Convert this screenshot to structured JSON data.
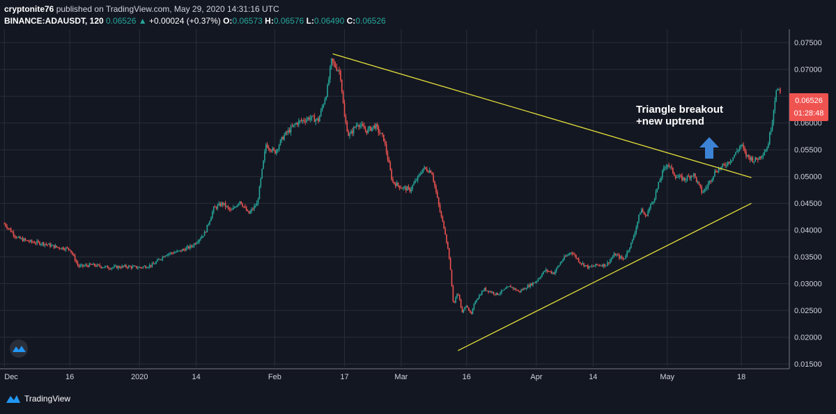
{
  "header": {
    "author": "cryptonite76",
    "published_text": "published on TradingView.com, May 29, 2020 14:31:16 UTC",
    "symbol": "BINANCE:ADAUSDT, 120",
    "last": "0.06526",
    "change": "+0.00024 (+0.37%)",
    "o_label": "O:",
    "o_value": "0.06573",
    "h_label": "H:",
    "h_value": "0.06576",
    "l_label": "L:",
    "l_value": "0.06490",
    "c_label": "C:",
    "c_value": "0.06526"
  },
  "footer": {
    "brand": "TradingView"
  },
  "price_tag": {
    "price": "0.06526",
    "countdown": "01:28:48"
  },
  "annotation": {
    "line1": "Triangle breakout",
    "line2": "+new uptrend"
  },
  "colors": {
    "background": "#131722",
    "grid": "#2a2e39",
    "up": "#26a69a",
    "down": "#ef5350",
    "trendline": "#e6e13a",
    "arrow": "#3c83d6",
    "tag": "#ef5350"
  },
  "chart_data": {
    "type": "candlestick",
    "symbol": "ADAUSDT",
    "ylim": [
      0.0145,
      0.0775
    ],
    "y_ticks": [
      0.015,
      0.02,
      0.025,
      0.03,
      0.035,
      0.04,
      0.045,
      0.05,
      0.055,
      0.06,
      0.065,
      0.07,
      0.075
    ],
    "y_tick_labels": [
      "0.01500",
      "0.02000",
      "0.02500",
      "0.03000",
      "0.03500",
      "0.04000",
      "0.04500",
      "0.05000",
      "0.05500",
      "0.06000",
      "0.06500",
      "0.07000",
      "0.07500"
    ],
    "x_ticks": [
      {
        "label": "Dec",
        "day": 0
      },
      {
        "label": "16",
        "day": 15
      },
      {
        "label": "2020",
        "day": 31
      },
      {
        "label": "14",
        "day": 44
      },
      {
        "label": "Feb",
        "day": 62
      },
      {
        "label": "17",
        "day": 78
      },
      {
        "label": "Mar",
        "day": 91
      },
      {
        "label": "16",
        "day": 106
      },
      {
        "label": "Apr",
        "day": 122
      },
      {
        "label": "14",
        "day": 135
      },
      {
        "label": "May",
        "day": 152
      },
      {
        "label": "18",
        "day": 169
      }
    ],
    "day_range": [
      -1,
      180
    ],
    "price_path": [
      [
        0,
        0.0412
      ],
      [
        3,
        0.0385
      ],
      [
        6,
        0.0378
      ],
      [
        9,
        0.0375
      ],
      [
        12,
        0.0368
      ],
      [
        15,
        0.0365
      ],
      [
        17,
        0.0332
      ],
      [
        20,
        0.0335
      ],
      [
        24,
        0.033
      ],
      [
        28,
        0.0332
      ],
      [
        31,
        0.033
      ],
      [
        34,
        0.0335
      ],
      [
        37,
        0.0355
      ],
      [
        40,
        0.036
      ],
      [
        43,
        0.037
      ],
      [
        46,
        0.0395
      ],
      [
        48,
        0.044
      ],
      [
        50,
        0.045
      ],
      [
        52,
        0.0435
      ],
      [
        54,
        0.0455
      ],
      [
        56,
        0.043
      ],
      [
        58,
        0.045
      ],
      [
        60,
        0.056
      ],
      [
        62,
        0.0545
      ],
      [
        64,
        0.0575
      ],
      [
        67,
        0.06
      ],
      [
        70,
        0.061
      ],
      [
        72,
        0.0605
      ],
      [
        74,
        0.066
      ],
      [
        75,
        0.0715
      ],
      [
        76,
        0.0705
      ],
      [
        77,
        0.0695
      ],
      [
        78,
        0.061
      ],
      [
        79,
        0.0575
      ],
      [
        81,
        0.06
      ],
      [
        83,
        0.0585
      ],
      [
        85,
        0.0595
      ],
      [
        87,
        0.057
      ],
      [
        88,
        0.053
      ],
      [
        89,
        0.049
      ],
      [
        91,
        0.048
      ],
      [
        93,
        0.0475
      ],
      [
        95,
        0.05
      ],
      [
        96,
        0.0515
      ],
      [
        98,
        0.051
      ],
      [
        99,
        0.047
      ],
      [
        100,
        0.043
      ],
      [
        101,
        0.04
      ],
      [
        102,
        0.035
      ],
      [
        103,
        0.026
      ],
      [
        104,
        0.0285
      ],
      [
        105,
        0.0245
      ],
      [
        106,
        0.0262
      ],
      [
        107,
        0.024
      ],
      [
        108,
        0.0268
      ],
      [
        110,
        0.029
      ],
      [
        113,
        0.028
      ],
      [
        116,
        0.0295
      ],
      [
        118,
        0.0285
      ],
      [
        120,
        0.0295
      ],
      [
        122,
        0.0305
      ],
      [
        124,
        0.0325
      ],
      [
        126,
        0.032
      ],
      [
        128,
        0.0345
      ],
      [
        130,
        0.036
      ],
      [
        132,
        0.034
      ],
      [
        134,
        0.033
      ],
      [
        136,
        0.0335
      ],
      [
        138,
        0.0335
      ],
      [
        140,
        0.0355
      ],
      [
        142,
        0.0345
      ],
      [
        144,
        0.038
      ],
      [
        146,
        0.044
      ],
      [
        147,
        0.0425
      ],
      [
        149,
        0.046
      ],
      [
        151,
        0.051
      ],
      [
        152,
        0.0525
      ],
      [
        154,
        0.05
      ],
      [
        156,
        0.0495
      ],
      [
        158,
        0.0505
      ],
      [
        160,
        0.047
      ],
      [
        161,
        0.048
      ],
      [
        163,
        0.051
      ],
      [
        165,
        0.052
      ],
      [
        167,
        0.0535
      ],
      [
        169,
        0.056
      ],
      [
        170,
        0.054
      ],
      [
        172,
        0.053
      ],
      [
        173,
        0.0535
      ],
      [
        175,
        0.0555
      ],
      [
        176,
        0.06
      ],
      [
        177,
        0.0665
      ],
      [
        178,
        0.0653
      ]
    ],
    "lines": [
      {
        "name": "upper-trendline",
        "from": [
          75.3,
          0.0729
        ],
        "to": [
          171.3,
          0.0498
        ]
      },
      {
        "name": "lower-trendline",
        "from": [
          104.0,
          0.0175
        ],
        "to": [
          171.3,
          0.045
        ]
      }
    ]
  }
}
